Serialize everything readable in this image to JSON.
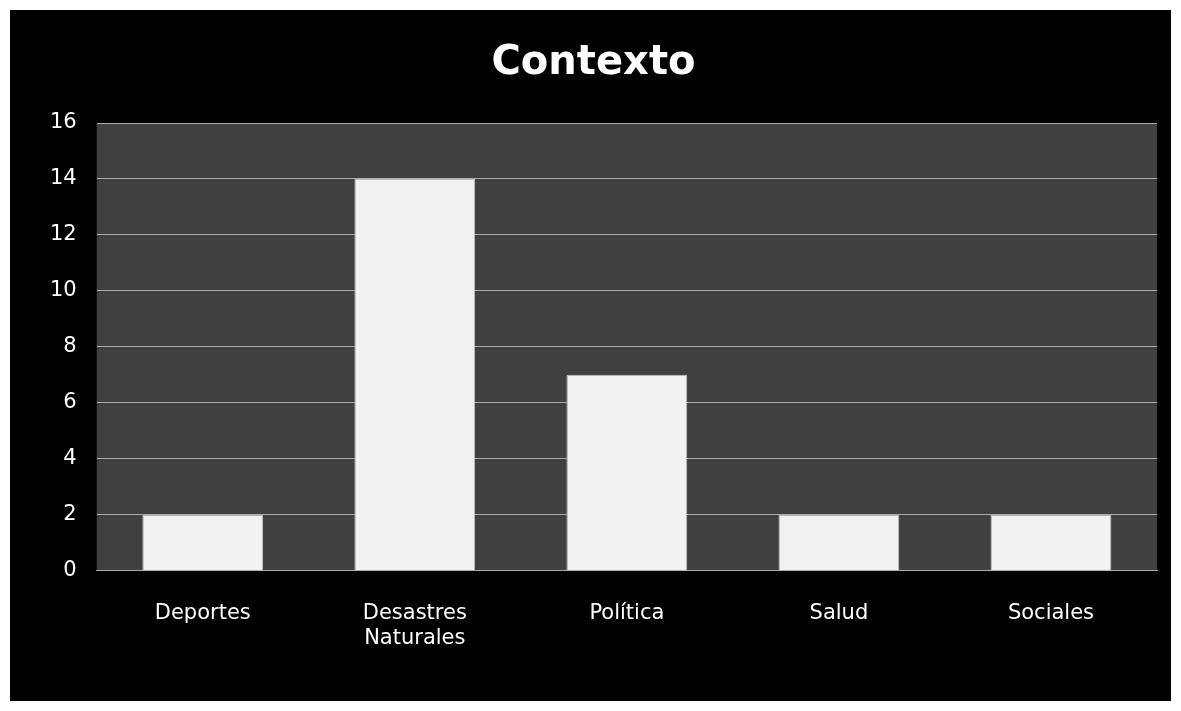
{
  "chart_data": {
    "type": "bar",
    "title": "Contexto",
    "categories": [
      "Deportes",
      "Desastres Naturales",
      "Política",
      "Salud",
      "Sociales"
    ],
    "values": [
      2,
      14,
      7,
      2,
      2
    ],
    "color": "#f2f2f2",
    "ylim": [
      0,
      16
    ],
    "yticks": [
      0,
      2,
      4,
      6,
      8,
      10,
      12,
      14,
      16
    ],
    "grid": "y"
  }
}
